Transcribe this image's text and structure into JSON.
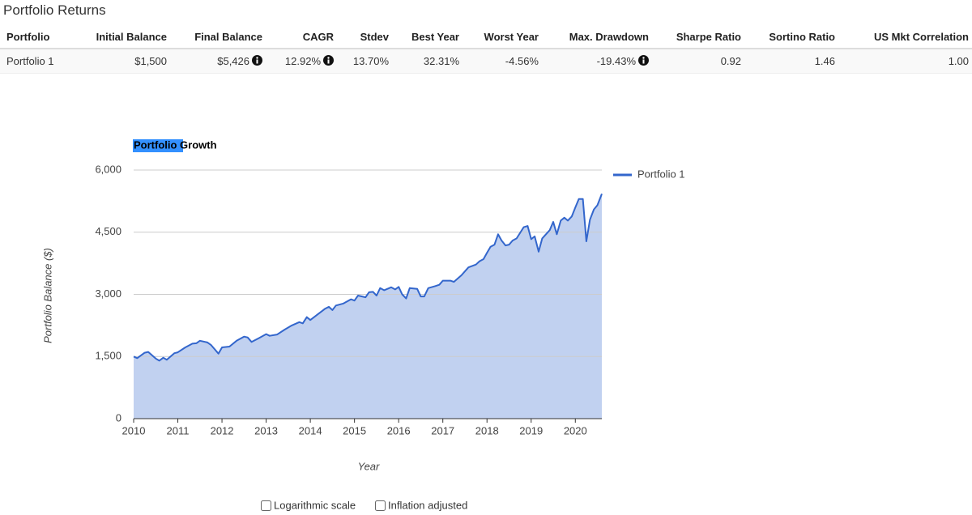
{
  "header": {
    "title": "Portfolio Returns"
  },
  "table": {
    "headers": [
      "Portfolio",
      "Initial Balance",
      "Final Balance",
      "CAGR",
      "Stdev",
      "Best Year",
      "Worst Year",
      "Max. Drawdown",
      "Sharpe Ratio",
      "Sortino Ratio",
      "US Mkt Correlation"
    ],
    "rows": [
      [
        "Portfolio 1",
        "$1,500",
        "$5,426",
        "12.92%",
        "13.70%",
        "32.31%",
        "-4.56%",
        "-19.43%",
        "0.92",
        "1.46",
        "1.00"
      ]
    ]
  },
  "chart_data": {
    "type": "area",
    "title": "Portfolio Growth",
    "x_label": "Year",
    "y_label": "Portfolio Balance ($)",
    "x": [
      2010.0,
      2010.08,
      2010.25,
      2010.33,
      2010.5,
      2010.58,
      2010.67,
      2010.75,
      2010.92,
      2011.0,
      2011.17,
      2011.33,
      2011.42,
      2011.5,
      2011.67,
      2011.75,
      2011.83,
      2011.92,
      2012.0,
      2012.17,
      2012.33,
      2012.5,
      2012.58,
      2012.67,
      2012.83,
      2013.0,
      2013.08,
      2013.25,
      2013.42,
      2013.58,
      2013.75,
      2013.83,
      2013.92,
      2014.0,
      2014.17,
      2014.33,
      2014.42,
      2014.5,
      2014.58,
      2014.75,
      2014.92,
      2015.0,
      2015.08,
      2015.25,
      2015.33,
      2015.42,
      2015.5,
      2015.58,
      2015.67,
      2015.83,
      2015.92,
      2016.0,
      2016.08,
      2016.17,
      2016.25,
      2016.42,
      2016.5,
      2016.58,
      2016.67,
      2016.83,
      2016.92,
      2017.0,
      2017.17,
      2017.25,
      2017.42,
      2017.58,
      2017.75,
      2017.83,
      2017.92,
      2018.0,
      2018.08,
      2018.17,
      2018.25,
      2018.33,
      2018.42,
      2018.5,
      2018.58,
      2018.67,
      2018.83,
      2018.92,
      2019.0,
      2019.08,
      2019.17,
      2019.25,
      2019.42,
      2019.5,
      2019.58,
      2019.67,
      2019.75,
      2019.83,
      2019.92,
      2020.0,
      2020.08,
      2020.17,
      2020.25,
      2020.33,
      2020.42,
      2020.5,
      2020.6
    ],
    "series": [
      {
        "name": "Portfolio 1",
        "color": "#3366cc",
        "values": [
          1500,
          1460,
          1590,
          1610,
          1450,
          1400,
          1470,
          1420,
          1580,
          1600,
          1720,
          1810,
          1820,
          1880,
          1840,
          1780,
          1680,
          1570,
          1720,
          1740,
          1880,
          1980,
          1960,
          1850,
          1940,
          2040,
          2000,
          2030,
          2150,
          2250,
          2330,
          2300,
          2450,
          2380,
          2520,
          2650,
          2700,
          2620,
          2730,
          2780,
          2880,
          2850,
          2970,
          2930,
          3050,
          3060,
          2970,
          3150,
          3100,
          3170,
          3120,
          3180,
          3000,
          2900,
          3150,
          3130,
          2950,
          2950,
          3150,
          3200,
          3230,
          3330,
          3330,
          3300,
          3460,
          3650,
          3720,
          3800,
          3850,
          4000,
          4150,
          4200,
          4450,
          4300,
          4180,
          4200,
          4300,
          4350,
          4620,
          4650,
          4330,
          4400,
          4030,
          4350,
          4550,
          4750,
          4450,
          4780,
          4850,
          4780,
          4880,
          5100,
          5300,
          5300,
          4280,
          4800,
          5050,
          5150,
          5426
        ]
      }
    ],
    "xlim": [
      2010,
      2020.6
    ],
    "xticks": [
      2010,
      2011,
      2012,
      2013,
      2014,
      2015,
      2016,
      2017,
      2018,
      2019,
      2020
    ],
    "ylim": [
      0,
      6000
    ],
    "yticks": [
      0,
      {
        "value": 1500,
        "label": "1,500"
      },
      {
        "value": 3000,
        "label": "3,000"
      },
      {
        "value": 4500,
        "label": "4,500"
      },
      {
        "value": 6000,
        "label": "6,000"
      }
    ],
    "grid": true,
    "log_scale": false,
    "legend": "right"
  },
  "controls": {
    "log_scale_label": "Logarithmic scale",
    "inflation_label": "Inflation adjusted"
  }
}
